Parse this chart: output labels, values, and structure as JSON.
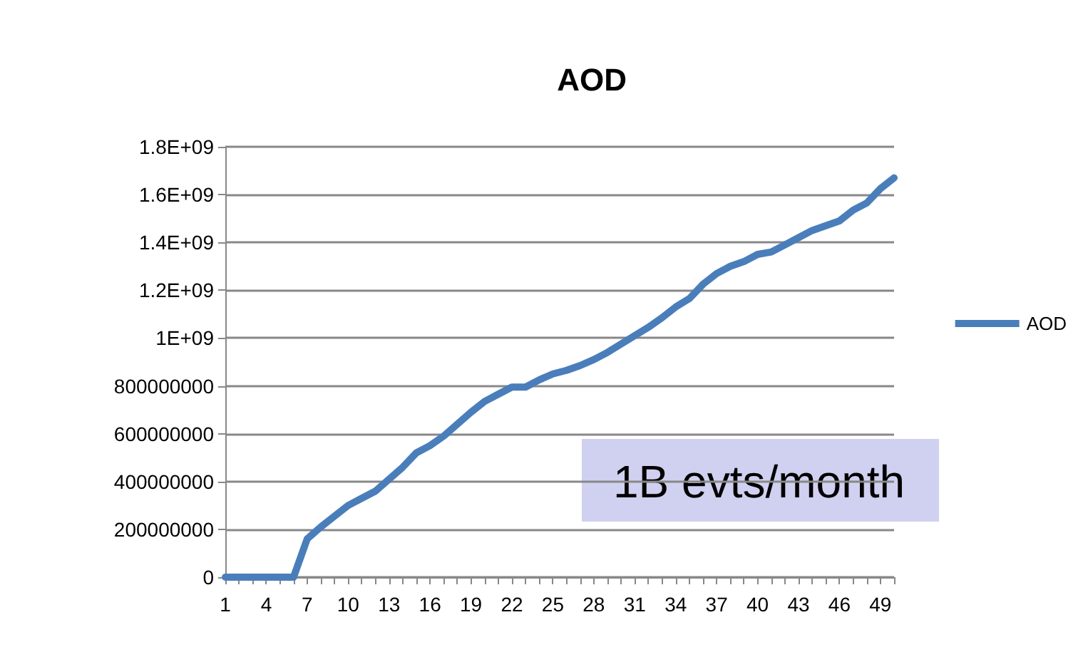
{
  "chart_data": {
    "type": "line",
    "title": "AOD",
    "categories": [
      "1",
      null,
      null,
      "4",
      null,
      null,
      "7",
      null,
      null,
      "10",
      null,
      null,
      "13",
      null,
      null,
      "16",
      null,
      null,
      "19",
      null,
      null,
      "22",
      null,
      null,
      "25",
      null,
      null,
      "28",
      null,
      null,
      "31",
      null,
      null,
      "34",
      null,
      null,
      "37",
      null,
      null,
      "40",
      null,
      null,
      "43",
      null,
      null,
      "46",
      null,
      null,
      "49",
      null
    ],
    "series": [
      {
        "name": "AOD",
        "color": "#4a7ebb",
        "values": [
          0,
          0,
          0,
          0,
          0,
          0,
          160000000,
          210000000,
          255000000,
          300000000,
          330000000,
          360000000,
          410000000,
          460000000,
          520000000,
          550000000,
          590000000,
          640000000,
          690000000,
          735000000,
          765000000,
          795000000,
          795000000,
          825000000,
          850000000,
          865000000,
          885000000,
          910000000,
          940000000,
          975000000,
          1010000000,
          1045000000,
          1085000000,
          1130000000,
          1165000000,
          1225000000,
          1270000000,
          1300000000,
          1320000000,
          1350000000,
          1360000000,
          1390000000,
          1420000000,
          1450000000,
          1470000000,
          1490000000,
          1535000000,
          1565000000,
          1625000000,
          1670000000
        ]
      }
    ],
    "ylim": [
      0,
      1800000000
    ],
    "yticks": [
      0,
      200000000,
      400000000,
      600000000,
      800000000,
      {
        "value": 1000000000,
        "label": "1E+09"
      },
      {
        "value": 1200000000,
        "label": "1.2E+09"
      },
      {
        "value": 1400000000,
        "label": "1.4E+09"
      },
      {
        "value": 1600000000,
        "label": "1.6E+09"
      },
      {
        "value": 1800000000,
        "label": "1.8E+09"
      }
    ],
    "grid": "y",
    "legend": "right",
    "marker": "none",
    "line_style": "solid",
    "annotations": [
      "1B evts/month"
    ]
  }
}
